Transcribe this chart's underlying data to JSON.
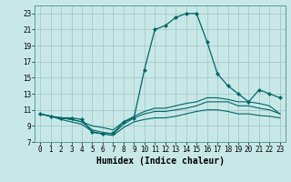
{
  "xlabel": "Humidex (Indice chaleur)",
  "bg_color": "#c8e8e8",
  "grid_color": "#9dc4c4",
  "line_color": "#006666",
  "xlim": [
    -0.5,
    23.5
  ],
  "ylim": [
    7,
    24
  ],
  "xticks": [
    0,
    1,
    2,
    3,
    4,
    5,
    6,
    7,
    8,
    9,
    10,
    11,
    12,
    13,
    14,
    15,
    16,
    17,
    18,
    19,
    20,
    21,
    22,
    23
  ],
  "yticks": [
    7,
    9,
    11,
    13,
    15,
    17,
    19,
    21,
    23
  ],
  "series_main": [
    10.5,
    10.2,
    10.0,
    10.0,
    9.8,
    8.2,
    8.0,
    8.1,
    9.5,
    10.0,
    16.0,
    21.0,
    21.5,
    22.5,
    23.0,
    23.0,
    19.5,
    15.5,
    14.0,
    13.0,
    12.0,
    13.5,
    13.0,
    12.5
  ],
  "series_flat1": [
    10.5,
    10.2,
    10.0,
    9.8,
    9.5,
    8.5,
    8.2,
    8.0,
    9.2,
    10.0,
    10.5,
    10.8,
    10.8,
    11.0,
    11.2,
    11.5,
    12.0,
    12.0,
    12.0,
    11.5,
    11.5,
    11.2,
    11.0,
    10.5
  ],
  "series_flat2": [
    10.5,
    10.2,
    9.8,
    9.5,
    9.2,
    8.3,
    8.0,
    7.8,
    8.8,
    9.5,
    9.8,
    10.0,
    10.0,
    10.2,
    10.5,
    10.8,
    11.0,
    11.0,
    10.8,
    10.5,
    10.5,
    10.3,
    10.2,
    10.0
  ],
  "series_flat3": [
    10.5,
    10.2,
    10.0,
    9.8,
    9.5,
    9.0,
    8.8,
    8.5,
    9.5,
    10.2,
    10.8,
    11.2,
    11.2,
    11.5,
    11.8,
    12.0,
    12.5,
    12.5,
    12.3,
    12.0,
    12.0,
    11.8,
    11.5,
    10.5
  ],
  "fontsize_tick": 5.5,
  "fontsize_xlabel": 7
}
